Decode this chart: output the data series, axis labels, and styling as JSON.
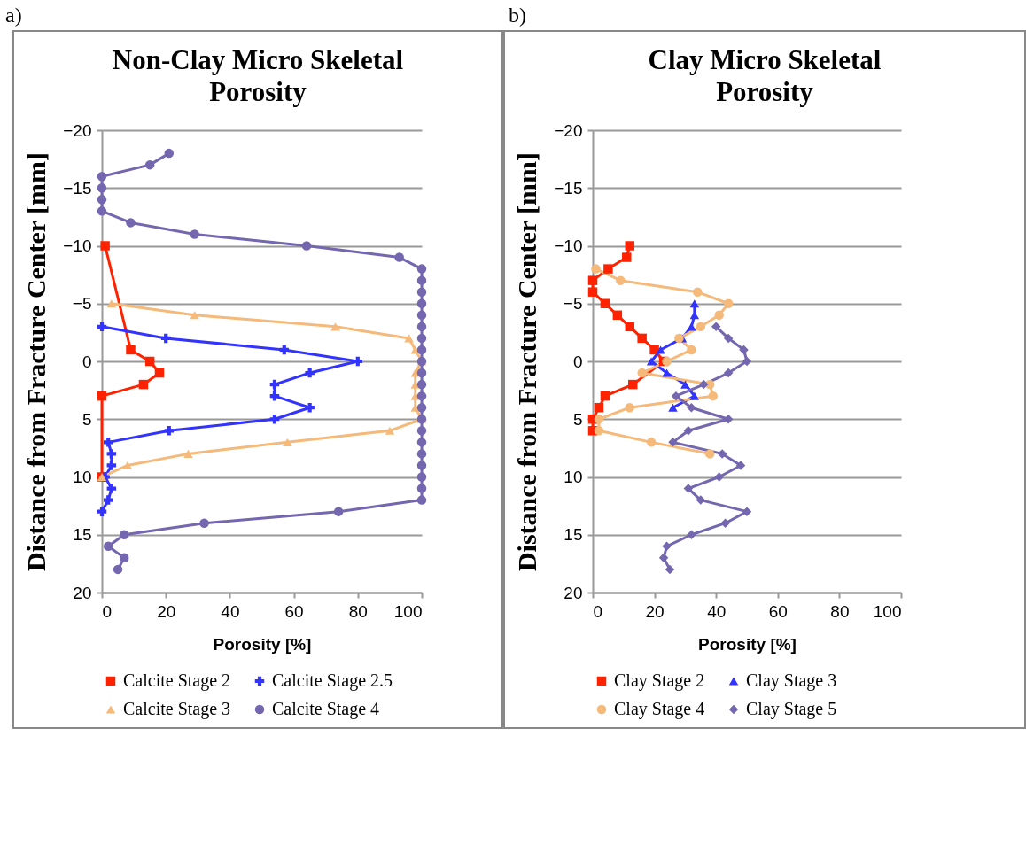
{
  "chart_data": [
    {
      "type": "line",
      "title": "Non-Clay Micro Skeletal Porosity",
      "xlabel": "Porosity [%]",
      "ylabel": "Distance from Fracture Center [mm]",
      "annotations": [
        "a)"
      ],
      "xlim": [
        0,
        100
      ],
      "xticks": [
        0,
        20,
        40,
        60,
        80,
        100
      ],
      "ylim": [
        20,
        -20
      ],
      "yticks": [
        -20,
        -15,
        -10,
        -5,
        0,
        5,
        10,
        15,
        20
      ],
      "grid": "y",
      "legend": "bottom",
      "series": [
        {
          "name": "Calcite Stage 2",
          "color": "#ff2200",
          "marker": "square",
          "x": [
            1,
            9,
            15,
            18,
            13,
            0,
            0
          ],
          "values": [
            -10,
            -1,
            0,
            1,
            2,
            3,
            10
          ]
        },
        {
          "name": "Calcite Stage 2.5",
          "color": "#3333ff",
          "marker": "cross",
          "x": [
            0,
            20,
            57,
            80,
            65,
            54,
            54,
            65,
            54,
            21,
            2,
            3,
            3,
            1,
            3,
            2,
            0
          ],
          "values": [
            -3,
            -2,
            -1,
            0,
            1,
            2,
            3,
            4,
            5,
            6,
            7,
            8,
            9,
            10,
            11,
            12,
            13
          ]
        },
        {
          "name": "Calcite Stage 3",
          "color": "#f5b97a",
          "marker": "triangle",
          "x": [
            3,
            29,
            73,
            96,
            98,
            100,
            98,
            98,
            98,
            98,
            100,
            90,
            58,
            27,
            8,
            0
          ],
          "values": [
            -5,
            -4,
            -3,
            -2,
            -1,
            0,
            1,
            2,
            3,
            4,
            5,
            6,
            7,
            8,
            9,
            10
          ]
        },
        {
          "name": "Calcite Stage 4",
          "color": "#7467b0",
          "marker": "circle",
          "x": [
            21,
            15,
            0,
            0,
            0,
            0,
            9,
            29,
            64,
            93,
            100,
            100,
            100,
            100,
            100,
            100,
            100,
            100,
            100,
            100,
            100,
            100,
            100,
            100,
            100,
            100,
            100,
            100,
            100,
            100,
            100,
            74,
            32,
            7,
            2,
            7,
            5
          ],
          "values": [
            -18,
            -17,
            -16,
            -15,
            -14,
            -13,
            -12,
            -11,
            -10,
            -9,
            -8,
            -7,
            -6,
            -5,
            -4,
            -3,
            -2,
            -1,
            0,
            1,
            2,
            3,
            4,
            5,
            6,
            7,
            8,
            9,
            10,
            11,
            12,
            13,
            14,
            15,
            16,
            17,
            18
          ]
        }
      ]
    },
    {
      "type": "line",
      "title": "Clay Micro Skeletal Porosity",
      "xlabel": "Porosity [%]",
      "ylabel": "Distance from Fracture Center [mm]",
      "annotations": [
        "b)"
      ],
      "xlim": [
        0,
        100
      ],
      "xticks": [
        0,
        20,
        40,
        60,
        80,
        100
      ],
      "ylim": [
        20,
        -20
      ],
      "yticks": [
        -20,
        -15,
        -10,
        -5,
        0,
        5,
        10,
        15,
        20
      ],
      "grid": "y",
      "legend": "bottom",
      "series": [
        {
          "name": "Clay Stage 2",
          "color": "#ff2200",
          "marker": "square",
          "x": [
            12,
            11,
            5,
            0,
            0,
            4,
            8,
            12,
            16,
            20,
            23,
            13,
            4,
            2,
            0,
            0
          ],
          "values": [
            -10,
            -9,
            -8,
            -7,
            -6,
            -5,
            -4,
            -3,
            -2,
            -1,
            0,
            2,
            3,
            4,
            5,
            6
          ]
        },
        {
          "name": "Clay Stage 3",
          "color": "#3333ff",
          "marker": "triangle",
          "x": [
            33,
            33,
            32,
            29,
            22,
            19,
            24,
            30,
            33,
            26
          ],
          "values": [
            -5,
            -4,
            -3,
            -2,
            -1,
            0,
            1,
            2,
            3,
            4
          ]
        },
        {
          "name": "Clay Stage 4",
          "color": "#f5b97a",
          "marker": "circle",
          "x": [
            1,
            9,
            34,
            44,
            41,
            35,
            28,
            32,
            24,
            16,
            38,
            39,
            12,
            2,
            2,
            19,
            38
          ],
          "values": [
            -8,
            -7,
            -6,
            -5,
            -4,
            -3,
            -2,
            -1,
            0,
            1,
            2,
            3,
            4,
            5,
            6,
            7,
            8
          ]
        },
        {
          "name": "Clay Stage 5",
          "color": "#7467b0",
          "marker": "diamond",
          "x": [
            40,
            44,
            49,
            50,
            44,
            36,
            27,
            32,
            44,
            31,
            26,
            42,
            48,
            41,
            31,
            35,
            50,
            43,
            32,
            24,
            23,
            25
          ],
          "values": [
            -3,
            -2,
            -1,
            0,
            1,
            2,
            3,
            4,
            5,
            6,
            7,
            8,
            9,
            10,
            11,
            12,
            13,
            14,
            15,
            16,
            17,
            18
          ]
        }
      ]
    }
  ]
}
